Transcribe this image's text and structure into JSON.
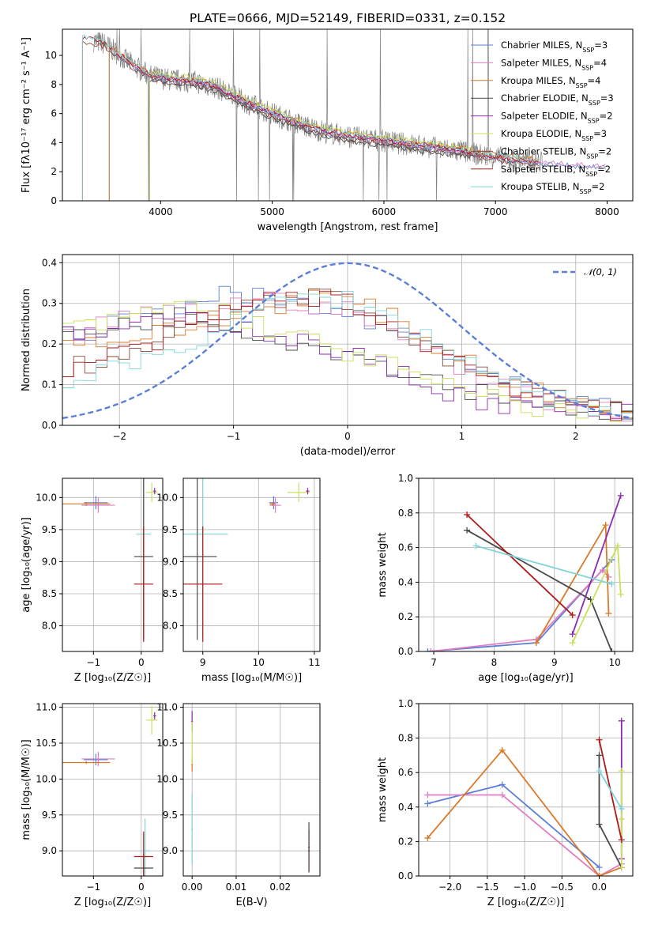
{
  "figure_title": "PLATE=0666, MJD=52149, FIBERID=0331, z=0.152",
  "colors": {
    "Chabrier MILES": "#5b7fd6",
    "Salpeter MILES": "#e07fc0",
    "Kroupa MILES": "#d97a2a",
    "Chabrier ELODIE": "#4a4a4a",
    "Salpeter ELODIE": "#8e2ab0",
    "Kroupa ELODIE": "#c8e05a",
    "Chabrier STELIB": "#8b4a3a",
    "Salpeter STELIB": "#b01818",
    "Kroupa STELIB": "#80d4d8",
    "data": "#7f7f7f",
    "normal": "#5b7fd6"
  },
  "chart_data": [
    {
      "id": "spectrum",
      "type": "line",
      "xlabel": "wavelength [Angstrom, rest frame]",
      "ylabel": "Flux [fλ10⁻¹⁷ erg cm⁻² s⁻¹ A⁻¹]",
      "xlim": [
        3120,
        8230
      ],
      "ylim": [
        0,
        11.8
      ],
      "xticks": [
        4000,
        5000,
        6000,
        7000,
        8000
      ],
      "yticks": [
        0,
        2,
        4,
        6,
        8,
        10
      ],
      "grid": false,
      "legend_position": "right",
      "legend": [
        {
          "name": "Chabrier MILES",
          "nssp": 3
        },
        {
          "name": "Salpeter MILES",
          "nssp": 4
        },
        {
          "name": "Kroupa MILES",
          "nssp": 4
        },
        {
          "name": "Chabrier ELODIE",
          "nssp": 3
        },
        {
          "name": "Salpeter ELODIE",
          "nssp": 2
        },
        {
          "name": "Kroupa ELODIE",
          "nssp": 3
        },
        {
          "name": "Chabrier STELIB",
          "nssp": 2
        },
        {
          "name": "Salpeter STELIB",
          "nssp": 2
        },
        {
          "name": "Kroupa STELIB",
          "nssp": 2
        }
      ],
      "continuum": {
        "x": [
          3300,
          3500,
          3700,
          3900,
          4100,
          4300,
          4500,
          4700,
          4900,
          5100,
          5300,
          5500,
          5700,
          5900,
          6100,
          6300,
          6500,
          6700,
          6900,
          7100,
          7300,
          7500,
          7700,
          7900
        ],
        "y": [
          11.2,
          10.8,
          9.6,
          8.6,
          8.3,
          8.2,
          7.8,
          7.0,
          6.3,
          5.7,
          5.1,
          4.7,
          4.4,
          4.2,
          4.0,
          3.8,
          3.6,
          3.4,
          3.1,
          2.9,
          2.7,
          2.6,
          2.5,
          2.4
        ]
      },
      "models": {
        "Chabrier MILES": {
          "x": [
            3540,
            8000
          ],
          "offset": -0.1
        },
        "Salpeter MILES": {
          "x": [
            3540,
            8000
          ],
          "offset": 0.0
        },
        "Kroupa MILES": {
          "x": [
            3540,
            7400
          ],
          "offset": 0.2
        },
        "Chabrier ELODIE": {
          "x": [
            3900,
            6800
          ],
          "offset": -0.3
        },
        "Salpeter ELODIE": {
          "x": [
            3900,
            6800
          ],
          "offset": 0.1
        },
        "Kroupa ELODIE": {
          "x": [
            3900,
            6800
          ],
          "offset": 0.3
        },
        "Chabrier STELIB": {
          "x": [
            3300,
            7400
          ],
          "offset": -0.2
        },
        "Salpeter STELIB": {
          "x": [
            3300,
            7400
          ],
          "offset": 0.05
        },
        "Kroupa STELIB": {
          "x": [
            3300,
            7400
          ],
          "offset": 0.15
        }
      },
      "data_x_range": [
        3400,
        7420
      ]
    },
    {
      "id": "residuals",
      "type": "line",
      "xlabel": "(data-model)/error",
      "ylabel": "Normed distribution",
      "xlim": [
        -2.5,
        2.5
      ],
      "ylim": [
        0,
        0.42
      ],
      "xticks": [
        -2,
        -1,
        0,
        1,
        2
      ],
      "yticks": [
        0.0,
        0.1,
        0.2,
        0.3,
        0.4
      ],
      "grid": true,
      "legend_label": "𝒩(0, 1)",
      "legend_position": "top-right",
      "normal": {
        "mu": 0,
        "sigma": 1
      },
      "bins": 51,
      "profiles": {
        "Chabrier MILES": [
          0.22,
          0.24,
          0.27,
          0.3,
          0.32,
          0.31,
          0.29,
          0.27,
          0.24,
          0.2,
          0.15,
          0.1,
          0.07,
          0.05,
          0.03
        ],
        "Salpeter MILES": [
          0.22,
          0.25,
          0.27,
          0.28,
          0.3,
          0.31,
          0.3,
          0.28,
          0.24,
          0.19,
          0.14,
          0.09,
          0.06,
          0.05,
          0.03
        ],
        "Kroupa MILES": [
          0.2,
          0.21,
          0.22,
          0.24,
          0.26,
          0.29,
          0.32,
          0.31,
          0.27,
          0.21,
          0.16,
          0.11,
          0.07,
          0.05,
          0.03
        ],
        "Chabrier ELODIE": [
          0.23,
          0.24,
          0.26,
          0.27,
          0.25,
          0.22,
          0.2,
          0.18,
          0.15,
          0.12,
          0.09,
          0.07,
          0.05,
          0.04,
          0.03
        ],
        "Salpeter ELODIE": [
          0.22,
          0.23,
          0.25,
          0.26,
          0.25,
          0.23,
          0.2,
          0.18,
          0.14,
          0.1,
          0.07,
          0.05,
          0.04,
          0.03,
          0.03
        ],
        "Kroupa ELODIE": [
          0.24,
          0.25,
          0.28,
          0.3,
          0.28,
          0.24,
          0.21,
          0.18,
          0.15,
          0.11,
          0.08,
          0.06,
          0.04,
          0.03,
          0.02
        ],
        "Chabrier STELIB": [
          0.14,
          0.16,
          0.19,
          0.23,
          0.27,
          0.3,
          0.32,
          0.3,
          0.26,
          0.2,
          0.14,
          0.1,
          0.08,
          0.06,
          0.03
        ],
        "Salpeter STELIB": [
          0.14,
          0.17,
          0.2,
          0.24,
          0.28,
          0.31,
          0.32,
          0.3,
          0.26,
          0.2,
          0.15,
          0.1,
          0.07,
          0.05,
          0.03
        ],
        "Kroupa STELIB": [
          0.1,
          0.13,
          0.16,
          0.2,
          0.25,
          0.29,
          0.32,
          0.31,
          0.27,
          0.22,
          0.16,
          0.11,
          0.07,
          0.05,
          0.03
        ]
      }
    },
    {
      "id": "age-vs-Z",
      "type": "scatter",
      "xlabel": "Z [log₁₀(Z/Z☉)]",
      "ylabel": "age  [log₁₀(age/yr)]",
      "xlim": [
        -1.65,
        0.45
      ],
      "ylim": [
        7.6,
        10.3
      ],
      "xticks": [
        -1,
        0
      ],
      "yticks": [
        8.0,
        8.5,
        9.0,
        9.5,
        10.0
      ],
      "grid": true,
      "points": [
        {
          "model": "Chabrier MILES",
          "x": -0.95,
          "y": 9.92,
          "xerr": 0.25,
          "yerr": 0.1
        },
        {
          "model": "Salpeter MILES",
          "x": -0.9,
          "y": 9.88,
          "xerr": 0.35,
          "yerr": 0.12
        },
        {
          "model": "Kroupa MILES",
          "x": -1.15,
          "y": 9.9,
          "xerr": 0.5,
          "yerr": 0.03
        },
        {
          "model": "Kroupa ELODIE",
          "x": 0.22,
          "y": 10.08,
          "xerr": 0.12,
          "yerr": 0.15
        },
        {
          "model": "Salpeter ELODIE",
          "x": 0.28,
          "y": 10.1,
          "xerr": 0.03,
          "yerr": 0.05
        },
        {
          "model": "Kroupa STELIB",
          "x": 0.05,
          "y": 9.43,
          "xerr": 0.15,
          "yerr": 1.6
        },
        {
          "model": "Chabrier ELODIE",
          "x": 0.05,
          "y": 9.08,
          "xerr": 0.2,
          "yerr": 1.3
        },
        {
          "model": "Salpeter STELIB",
          "x": 0.05,
          "y": 8.65,
          "xerr": 0.2,
          "yerr": 0.9
        }
      ]
    },
    {
      "id": "age-vs-mass",
      "type": "scatter",
      "xlabel": "mass [log₁₀(M/M☉)]",
      "ylabel": "",
      "xlim": [
        8.65,
        11.1
      ],
      "ylim": [
        7.6,
        10.3
      ],
      "xticks": [
        9,
        10,
        11
      ],
      "yticks": [
        8.0,
        8.5,
        9.0,
        9.5,
        10.0
      ],
      "grid": true,
      "points": [
        {
          "model": "Chabrier MILES",
          "x": 10.27,
          "y": 9.92,
          "xerr": 0.08,
          "yerr": 0.1
        },
        {
          "model": "Salpeter MILES",
          "x": 10.3,
          "y": 9.88,
          "xerr": 0.1,
          "yerr": 0.12
        },
        {
          "model": "Kroupa MILES",
          "x": 10.25,
          "y": 9.9,
          "xerr": 0.05,
          "yerr": 0.03
        },
        {
          "model": "Kroupa ELODIE",
          "x": 10.72,
          "y": 10.08,
          "xerr": 0.2,
          "yerr": 0.15
        },
        {
          "model": "Salpeter ELODIE",
          "x": 10.88,
          "y": 10.1,
          "xerr": 0.03,
          "yerr": 0.05
        },
        {
          "model": "Kroupa STELIB",
          "x": 9.0,
          "y": 9.43,
          "xerr": 0.45,
          "yerr": 1.6
        },
        {
          "model": "Chabrier ELODIE",
          "x": 8.9,
          "y": 9.08,
          "xerr": 0.35,
          "yerr": 1.3
        },
        {
          "model": "Salpeter STELIB",
          "x": 9.0,
          "y": 8.65,
          "xerr": 0.35,
          "yerr": 0.9
        }
      ]
    },
    {
      "id": "weight-vs-age",
      "type": "line",
      "xlabel": "age  [log₁₀(age/yr)]",
      "ylabel": "mass weight",
      "xlim": [
        6.75,
        10.3
      ],
      "ylim": [
        0,
        1.0
      ],
      "xticks": [
        7,
        8,
        9,
        10
      ],
      "yticks": [
        0.0,
        0.2,
        0.4,
        0.6,
        0.8,
        1.0
      ],
      "grid": true,
      "series": [
        {
          "model": "Chabrier MILES",
          "x": [
            6.9,
            8.7,
            9.95
          ],
          "y": [
            0.0,
            0.05,
            0.53
          ]
        },
        {
          "model": "Salpeter MILES",
          "x": [
            6.95,
            8.7,
            9.8,
            9.9
          ],
          "y": [
            0.0,
            0.07,
            0.47,
            0.43
          ]
        },
        {
          "model": "Kroupa MILES",
          "x": [
            8.7,
            9.85,
            9.9
          ],
          "y": [
            0.05,
            0.73,
            0.22
          ]
        },
        {
          "model": "Chabrier ELODIE",
          "x": [
            7.55,
            9.6,
            9.95
          ],
          "y": [
            0.7,
            0.3,
            0.0
          ]
        },
        {
          "model": "Salpeter ELODIE",
          "x": [
            9.3,
            10.1
          ],
          "y": [
            0.1,
            0.9
          ]
        },
        {
          "model": "Kroupa ELODIE",
          "x": [
            9.3,
            10.05,
            10.1
          ],
          "y": [
            0.05,
            0.61,
            0.33
          ]
        },
        {
          "model": "Salpeter STELIB",
          "x": [
            7.55,
            9.3
          ],
          "y": [
            0.79,
            0.21
          ]
        },
        {
          "model": "Kroupa STELIB",
          "x": [
            7.7,
            9.95
          ],
          "y": [
            0.61,
            0.39
          ]
        }
      ]
    },
    {
      "id": "mass-vs-Z",
      "type": "scatter",
      "xlabel": "Z [log₁₀(Z/Z☉)]",
      "ylabel": "mass [log₁₀(M/M☉)]",
      "xlim": [
        -1.65,
        0.45
      ],
      "ylim": [
        8.65,
        11.05
      ],
      "xticks": [
        -1,
        0
      ],
      "yticks": [
        9.0,
        9.5,
        10.0,
        10.5,
        11.0
      ],
      "grid": true,
      "points": [
        {
          "model": "Chabrier MILES",
          "x": -0.95,
          "y": 10.27,
          "xerr": 0.25,
          "yerr": 0.08
        },
        {
          "model": "Salpeter MILES",
          "x": -0.9,
          "y": 10.28,
          "xerr": 0.35,
          "yerr": 0.1
        },
        {
          "model": "Kroupa MILES",
          "x": -1.15,
          "y": 10.23,
          "xerr": 0.5,
          "yerr": 0.02
        },
        {
          "model": "Kroupa ELODIE",
          "x": 0.22,
          "y": 10.82,
          "xerr": 0.12,
          "yerr": 0.2
        },
        {
          "model": "Salpeter ELODIE",
          "x": 0.28,
          "y": 10.88,
          "xerr": 0.03,
          "yerr": 0.05
        },
        {
          "model": "Kroupa STELIB",
          "x": 0.08,
          "y": 9.0,
          "xerr": 0.1,
          "yerr": 0.45
        },
        {
          "model": "Chabrier ELODIE",
          "x": 0.05,
          "y": 8.76,
          "xerr": 0.2,
          "yerr": 0.2
        },
        {
          "model": "Salpeter STELIB",
          "x": 0.05,
          "y": 8.92,
          "xerr": 0.2,
          "yerr": 0.35
        }
      ]
    },
    {
      "id": "mass-vs-ebv",
      "type": "scatter",
      "xlabel": "E(B-V)",
      "ylabel": "",
      "xlim": [
        -0.002,
        0.029
      ],
      "ylim": [
        8.65,
        11.05
      ],
      "xticks": [
        0.0,
        0.01,
        0.02
      ],
      "xtick_labels": [
        "0.00",
        "0.01",
        "0.02"
      ],
      "yticks": [
        9.0,
        9.5,
        10.0,
        10.5,
        11.0
      ],
      "grid": true,
      "points": [
        {
          "model": "Salpeter ELODIE",
          "x": 0.0,
          "y": 10.8,
          "xerr": 0.0002,
          "yerr": 0.15
        },
        {
          "model": "Kroupa MILES",
          "x": 0.0,
          "y": 10.2,
          "xerr": 0.0002,
          "yerr": 0.1
        },
        {
          "model": "Kroupa ELODIE",
          "x": 0.0,
          "y": 10.5,
          "xerr": 0.0002,
          "yerr": 0.3
        },
        {
          "model": "Kroupa STELIB",
          "x": 0.0,
          "y": 9.3,
          "xerr": 0.0002,
          "yerr": 0.5
        },
        {
          "model": "Salpeter STELIB",
          "x": 0.0265,
          "y": 9.0,
          "xerr": 0.0002,
          "yerr": 0.3
        },
        {
          "model": "Chabrier ELODIE",
          "x": 0.0265,
          "y": 9.05,
          "xerr": 0.0002,
          "yerr": 0.35
        }
      ]
    },
    {
      "id": "weight-vs-Z",
      "type": "line",
      "xlabel": "Z [log₁₀(Z/Z☉)]",
      "ylabel": "mass weight",
      "xlim": [
        -2.42,
        0.45
      ],
      "ylim": [
        0,
        1.0
      ],
      "xticks": [
        -2.0,
        -1.5,
        -1.0,
        -0.5,
        0.0
      ],
      "xtick_labels": [
        "−2.0",
        "−1.5",
        "−1.0",
        "−0.5",
        "0.0"
      ],
      "yticks": [
        0.0,
        0.2,
        0.4,
        0.6,
        0.8,
        1.0
      ],
      "grid": true,
      "series": [
        {
          "model": "Chabrier MILES",
          "x": [
            -2.3,
            -1.3,
            0.0
          ],
          "y": [
            0.42,
            0.53,
            0.05
          ]
        },
        {
          "model": "Salpeter MILES",
          "x": [
            -2.3,
            -1.3,
            0.0,
            0.3
          ],
          "y": [
            0.47,
            0.47,
            0.0,
            0.07
          ]
        },
        {
          "model": "Kroupa MILES",
          "x": [
            -2.3,
            -1.3,
            0.0,
            0.3
          ],
          "y": [
            0.22,
            0.73,
            0.0,
            0.05
          ]
        },
        {
          "model": "Chabrier ELODIE",
          "x": [
            0.0,
            0.0,
            0.3
          ],
          "y": [
            0.7,
            0.3,
            0.05
          ]
        },
        {
          "model": "Salpeter ELODIE",
          "x": [
            0.3,
            0.3
          ],
          "y": [
            0.9,
            0.1
          ]
        },
        {
          "model": "Kroupa ELODIE",
          "x": [
            0.3,
            0.3,
            0.3
          ],
          "y": [
            0.61,
            0.33,
            0.05
          ]
        },
        {
          "model": "Salpeter STELIB",
          "x": [
            0.0,
            0.3
          ],
          "y": [
            0.79,
            0.21
          ]
        },
        {
          "model": "Kroupa STELIB",
          "x": [
            0.0,
            0.3
          ],
          "y": [
            0.61,
            0.39
          ]
        }
      ]
    }
  ]
}
